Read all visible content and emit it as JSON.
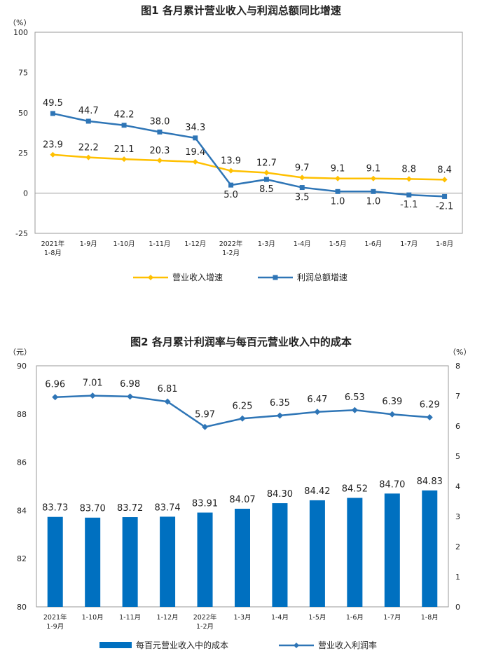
{
  "chart_data": [
    {
      "type": "line",
      "title": "图1  各月累计营业收入与利润总额同比增速",
      "ylabel": "（%）",
      "ylim": [
        -25,
        100
      ],
      "yticks": [
        "100",
        "75",
        "50",
        "25",
        "0",
        "-25"
      ],
      "categories": [
        [
          "2021年",
          "1-8月"
        ],
        [
          "1-9月"
        ],
        [
          "1-10月"
        ],
        [
          "1-11月"
        ],
        [
          "1-12月"
        ],
        [
          "2022年",
          "1-2月"
        ],
        [
          "1-3月"
        ],
        [
          "1-4月"
        ],
        [
          "1-5月"
        ],
        [
          "1-6月"
        ],
        [
          "1-7月"
        ],
        [
          "1-8月"
        ]
      ],
      "series": [
        {
          "name": "营业收入增速",
          "color": "#FFC000",
          "values": [
            23.9,
            22.2,
            21.1,
            20.3,
            19.4,
            13.9,
            12.7,
            9.7,
            9.1,
            9.1,
            8.8,
            8.4
          ],
          "labels": [
            "23.9",
            "22.2",
            "21.1",
            "20.3",
            "19.4",
            "13.9",
            "12.7",
            "9.7",
            "9.1",
            "9.1",
            "8.8",
            "8.4"
          ]
        },
        {
          "name": "利润总额增速",
          "color": "#2E75B6",
          "values": [
            49.5,
            44.7,
            42.2,
            38.0,
            34.3,
            5.0,
            8.5,
            3.5,
            1.0,
            1.0,
            -1.1,
            -2.1
          ],
          "labels": [
            "49.5",
            "44.7",
            "42.2",
            "38.0",
            "34.3",
            "5.0",
            "8.5",
            "3.5",
            "1.0",
            "1.0",
            "-1.1",
            "-2.1"
          ]
        }
      ],
      "grid": false,
      "legend": "bottom"
    },
    {
      "type": "bar+line",
      "title": "图2  各月累计利润率与每百元营业收入中的成本",
      "ylabel_left": "（元）",
      "ylabel_right": "（%）",
      "ylim_left": [
        80,
        90
      ],
      "ylim_right": [
        0,
        8
      ],
      "yticks_left": [
        "90",
        "88",
        "86",
        "84",
        "82",
        "80"
      ],
      "yticks_right": [
        "8",
        "7",
        "6",
        "5",
        "4",
        "3",
        "2",
        "1",
        "0"
      ],
      "categories": [
        [
          "2021年",
          "1-9月"
        ],
        [
          "1-10月"
        ],
        [
          "1-11月"
        ],
        [
          "1-12月"
        ],
        [
          "2022年",
          "1-2月"
        ],
        [
          "1-3月"
        ],
        [
          "1-4月"
        ],
        [
          "1-5月"
        ],
        [
          "1-6月"
        ],
        [
          "1-7月"
        ],
        [
          "1-8月"
        ]
      ],
      "bars": {
        "name": "每百元营业收入中的成本",
        "color": "#0070C0",
        "values": [
          83.73,
          83.7,
          83.72,
          83.74,
          83.91,
          84.07,
          84.3,
          84.42,
          84.52,
          84.7,
          84.83
        ],
        "labels": [
          "83.73",
          "83.70",
          "83.72",
          "83.74",
          "83.91",
          "84.07",
          "84.30",
          "84.42",
          "84.52",
          "84.70",
          "84.83"
        ]
      },
      "line": {
        "name": "营业收入利润率",
        "color": "#2E75B6",
        "values": [
          6.96,
          7.01,
          6.98,
          6.81,
          5.97,
          6.25,
          6.35,
          6.47,
          6.53,
          6.39,
          6.29
        ],
        "labels": [
          "6.96",
          "7.01",
          "6.98",
          "6.81",
          "5.97",
          "6.25",
          "6.35",
          "6.47",
          "6.53",
          "6.39",
          "6.29"
        ]
      },
      "grid": false,
      "legend": "bottom"
    }
  ]
}
